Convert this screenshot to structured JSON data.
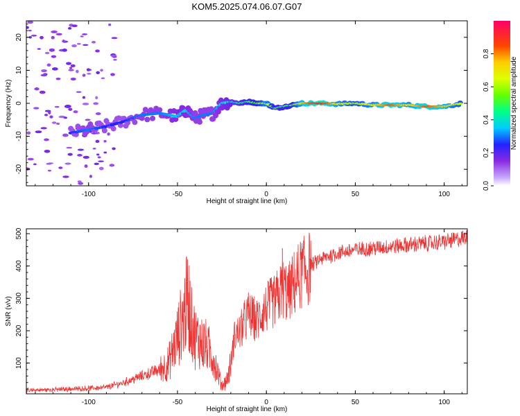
{
  "title": "KOM5.2025.074.06.07.G07",
  "chart_data": [
    {
      "type": "heatmap",
      "xlabel": "Height of straight line (km)",
      "ylabel": "Frequency (Hz)",
      "xlim": [
        -135,
        113
      ],
      "ylim": [
        -25,
        25
      ],
      "x_ticks": [
        -100,
        -50,
        0,
        50,
        100
      ],
      "y_ticks": [
        20,
        10,
        0,
        -10,
        -20
      ],
      "colorbar": {
        "label": "Normalized spectral amplitude",
        "range": [
          0,
          1
        ],
        "ticks": [
          "0.0",
          "0.2",
          "0.4",
          "0.6",
          "0.8"
        ]
      },
      "ridge": [
        {
          "x": -110,
          "freq": -9.0,
          "amp": 0.25
        },
        {
          "x": -100,
          "freq": -8.0,
          "amp": 0.3
        },
        {
          "x": -90,
          "freq": -7.0,
          "amp": 0.25
        },
        {
          "x": -80,
          "freq": -5.5,
          "amp": 0.25
        },
        {
          "x": -70,
          "freq": -3.5,
          "amp": 0.3
        },
        {
          "x": -60,
          "freq": -3.0,
          "amp": 0.3
        },
        {
          "x": -50,
          "freq": -4.0,
          "amp": 0.35
        },
        {
          "x": -45,
          "freq": -2.0,
          "amp": 0.35
        },
        {
          "x": -40,
          "freq": -4.5,
          "amp": 0.3
        },
        {
          "x": -35,
          "freq": -3.5,
          "amp": 0.3
        },
        {
          "x": -30,
          "freq": -3.0,
          "amp": 0.3
        },
        {
          "x": -25,
          "freq": 0.0,
          "amp": 0.35
        },
        {
          "x": -20,
          "freq": 0.5,
          "amp": 0.4
        },
        {
          "x": -15,
          "freq": 0.0,
          "amp": 0.45
        },
        {
          "x": -10,
          "freq": 0.5,
          "amp": 0.5
        },
        {
          "x": -5,
          "freq": 0.0,
          "amp": 0.55
        },
        {
          "x": 0,
          "freq": 0.0,
          "amp": 0.7
        },
        {
          "x": 5,
          "freq": -1.5,
          "amp": 0.5
        },
        {
          "x": 10,
          "freq": -1.0,
          "amp": 0.5
        },
        {
          "x": 15,
          "freq": -0.5,
          "amp": 0.55
        },
        {
          "x": 20,
          "freq": 0.0,
          "amp": 0.75
        },
        {
          "x": 30,
          "freq": 0.0,
          "amp": 0.95
        },
        {
          "x": 40,
          "freq": -0.2,
          "amp": 0.7
        },
        {
          "x": 50,
          "freq": 0.0,
          "amp": 0.6
        },
        {
          "x": 60,
          "freq": -0.5,
          "amp": 0.7
        },
        {
          "x": 70,
          "freq": -0.5,
          "amp": 0.85
        },
        {
          "x": 80,
          "freq": -0.5,
          "amp": 0.7
        },
        {
          "x": 90,
          "freq": -1.0,
          "amp": 0.85
        },
        {
          "x": 100,
          "freq": -1.0,
          "amp": 0.75
        },
        {
          "x": 110,
          "freq": 0.0,
          "amp": 0.6
        }
      ],
      "noise_region": {
        "x": [
          -135,
          -85
        ],
        "freq": [
          -25,
          25
        ],
        "amp": 0.1
      }
    },
    {
      "type": "line",
      "xlabel": "Height of straight line (km)",
      "ylabel": "SNR (v/v)",
      "xlim": [
        -135,
        113
      ],
      "ylim": [
        5,
        515
      ],
      "x_ticks": [
        -100,
        -50,
        0,
        50,
        100
      ],
      "y_ticks": [
        500,
        400,
        300,
        200,
        100
      ],
      "color": "#ee3333",
      "series": [
        {
          "x": [
            -135,
            -120,
            -100,
            -90,
            -80,
            -70,
            -60,
            -55,
            -50,
            -48,
            -46,
            -44,
            -42,
            -40,
            -35,
            -30,
            -25,
            -22,
            -20,
            -18,
            -15,
            -12,
            -10,
            -8,
            -5,
            -2,
            0,
            2,
            5,
            8,
            10,
            12,
            15,
            20,
            25,
            30,
            40,
            50,
            60,
            70,
            80,
            90,
            100,
            105,
            110,
            113
          ],
          "y": [
            15,
            18,
            22,
            25,
            40,
            60,
            80,
            100,
            180,
            220,
            260,
            300,
            220,
            180,
            160,
            120,
            30,
            50,
            100,
            180,
            200,
            230,
            250,
            240,
            230,
            260,
            270,
            280,
            290,
            320,
            330,
            310,
            340,
            380,
            400,
            420,
            440,
            450,
            455,
            460,
            465,
            470,
            475,
            480,
            485,
            490
          ]
        }
      ],
      "spikes": [
        {
          "x": -45,
          "y": 425
        },
        {
          "x": 9,
          "y": 455
        }
      ]
    }
  ]
}
